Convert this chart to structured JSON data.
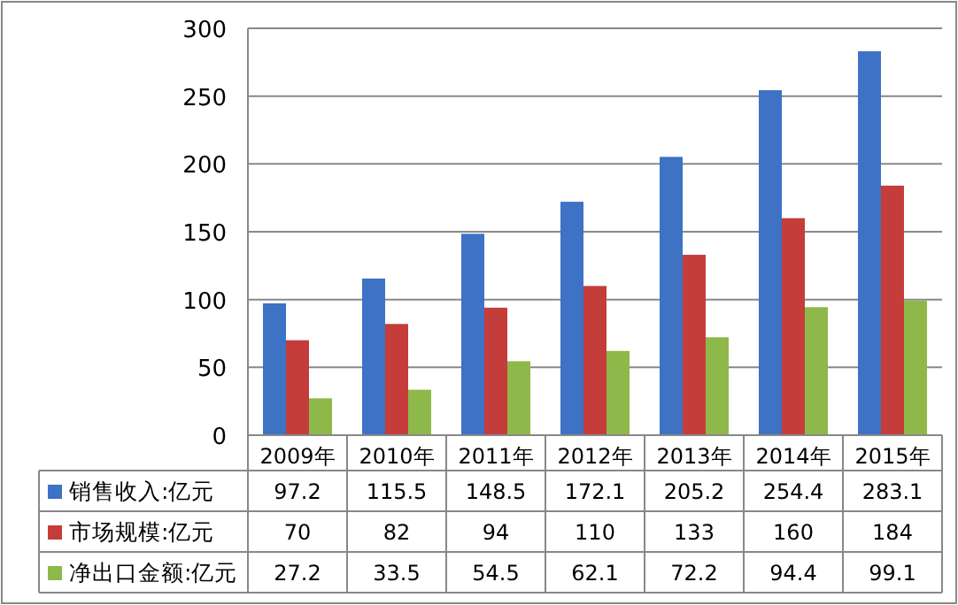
{
  "chart_data": {
    "type": "bar",
    "categories": [
      "2009年",
      "2010年",
      "2011年",
      "2012年",
      "2013年",
      "2014年",
      "2015年"
    ],
    "series": [
      {
        "name": "销售收入:亿元",
        "color": "#3d72c4",
        "values": [
          97.2,
          115.5,
          148.5,
          172.1,
          205.2,
          254.4,
          283.1
        ]
      },
      {
        "name": "市场规模:亿元",
        "color": "#c43d3a",
        "values": [
          70,
          82,
          94,
          110,
          133,
          160,
          184
        ]
      },
      {
        "name": "净出口金额:亿元",
        "color": "#8fb84a",
        "values": [
          27.2,
          33.5,
          54.5,
          62.1,
          72.2,
          94.4,
          99.1
        ]
      }
    ],
    "ylim": [
      0,
      300
    ],
    "yticks": [
      0,
      50,
      100,
      150,
      200,
      250,
      300
    ],
    "grid": "y",
    "legend": "bottom",
    "data_labels": true
  }
}
